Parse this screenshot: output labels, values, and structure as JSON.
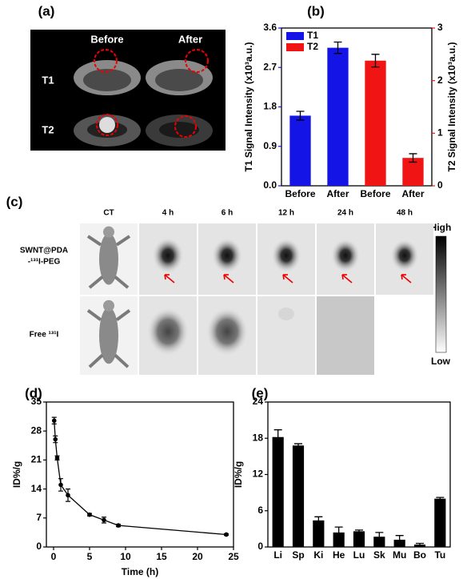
{
  "figure": {
    "panel_labels": [
      "(a)",
      "(b)",
      "(c)",
      "(d)",
      "(e)"
    ],
    "mri": {
      "columns": [
        "Before",
        "After"
      ],
      "rows": [
        "T1",
        "T2"
      ]
    },
    "spect": {
      "columns": [
        "CT",
        "4 h",
        "6 h",
        "12 h",
        "24 h",
        "48 h"
      ],
      "rows": [
        [
          "SWNT@PDA",
          "-¹³¹I-PEG"
        ],
        [
          "Free ¹³¹I"
        ]
      ],
      "colorbar": [
        "High",
        "Low"
      ]
    }
  },
  "chart_data": [
    {
      "type": "bar",
      "categories": [
        "Before",
        "After",
        "Before",
        "After"
      ],
      "series": [
        {
          "name": "T1",
          "color": "#1414e6",
          "values": [
            1.6,
            3.15,
            null,
            null
          ],
          "errors": [
            0.1,
            0.13,
            null,
            null
          ]
        },
        {
          "name": "T2",
          "color": "#f01414",
          "axis": "y2",
          "values": [
            null,
            null,
            2.38,
            0.53
          ],
          "errors": [
            null,
            null,
            0.12,
            0.08
          ]
        }
      ],
      "ylabel": "T1 Signal Intensity (x10³a.u.)",
      "y2label": "T2 Signal Intensity (x10³a.u.)",
      "ylim": [
        0,
        3.6
      ],
      "yticks": [
        {
          "value": 0,
          "label": "0.0"
        },
        0.9,
        1.8,
        2.7,
        3.6
      ],
      "y2lim": [
        0,
        3
      ],
      "y2ticks": [
        0,
        1,
        2,
        3
      ],
      "legend": "upper left"
    },
    {
      "type": "scatter",
      "x": [
        0.083,
        0.25,
        0.5,
        1,
        2,
        5,
        7,
        9,
        24
      ],
      "series": [
        {
          "color": "#000000",
          "values": [
            30.5,
            26,
            21.5,
            15,
            12.5,
            7.8,
            6.5,
            5.2,
            3
          ],
          "errors": [
            0.8,
            0.8,
            0.5,
            1.5,
            1.5,
            0.3,
            0.7,
            0.3,
            0.2
          ]
        }
      ],
      "xlabel": "Time (h)",
      "ylabel": "ID%/g",
      "xlim": [
        -1,
        25
      ],
      "xticks": [
        0,
        5,
        10,
        15,
        20,
        25
      ],
      "ylim": [
        0,
        35
      ],
      "yticks": [
        0,
        7,
        14,
        21,
        28,
        35
      ]
    },
    {
      "type": "bar",
      "categories": [
        "Li",
        "Sp",
        "Ki",
        "He",
        "Lu",
        "Sk",
        "Mu",
        "Bo",
        "Tu"
      ],
      "series": [
        {
          "color": "#000000",
          "values": [
            18.2,
            16.8,
            4.4,
            2.4,
            2.6,
            1.7,
            1.2,
            0.4,
            8
          ],
          "errors": [
            1.2,
            0.3,
            0.6,
            0.9,
            0.2,
            0.7,
            0.7,
            0.2,
            0.2
          ]
        }
      ],
      "ylabel": "ID%/g",
      "ylim": [
        0,
        24
      ],
      "yticks": [
        0,
        6,
        12,
        18,
        24
      ]
    }
  ]
}
